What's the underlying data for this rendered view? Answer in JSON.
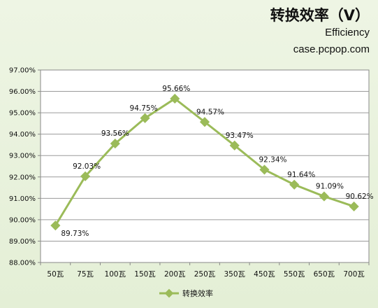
{
  "chart_data": {
    "type": "line",
    "title": "转换效率（V）",
    "subtitle": "Efficiency",
    "source": "case.pcpop.com",
    "categories": [
      "50瓦",
      "75瓦",
      "100瓦",
      "150瓦",
      "200瓦",
      "250瓦",
      "350瓦",
      "450瓦",
      "550瓦",
      "650瓦",
      "700瓦"
    ],
    "series": [
      {
        "name": "转换效率",
        "values": [
          89.73,
          92.03,
          93.56,
          94.75,
          95.66,
          94.57,
          93.47,
          92.34,
          91.64,
          91.09,
          90.62
        ],
        "labels": [
          "89.73%",
          "92.03%",
          "93.56%",
          "94.75%",
          "95.66%",
          "94.57%",
          "93.47%",
          "92.34%",
          "91.64%",
          "91.09%",
          "90.62%"
        ],
        "color": "#9bbb59"
      }
    ],
    "yticks": [
      "88.00%",
      "89.00%",
      "90.00%",
      "91.00%",
      "92.00%",
      "93.00%",
      "94.00%",
      "95.00%",
      "96.00%",
      "97.00%"
    ],
    "ylim": [
      88,
      97
    ],
    "grid": true,
    "legend": "bottom"
  }
}
